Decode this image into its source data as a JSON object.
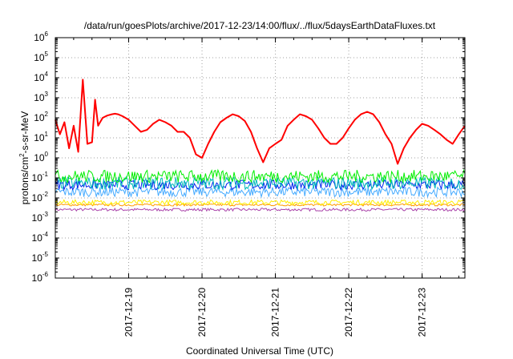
{
  "chart_data": {
    "type": "line",
    "title": "/data/run/goesPlots/archive/2017-12-23/14:00/flux/../flux/5daysEarthDataFluxes.txt",
    "xlabel": "Coordinated Universal Time (UTC)",
    "ylabel": {
      "base": "protons/cm",
      "sup": "2",
      "rest": "-s-sr-MeV"
    },
    "yscale": "log",
    "ylim": [
      1e-06,
      1000000.0
    ],
    "y_ticks": [
      {
        "value": 1e-06,
        "base": "10",
        "exp": "-6"
      },
      {
        "value": 1e-05,
        "base": "10",
        "exp": "-5"
      },
      {
        "value": 0.0001,
        "base": "10",
        "exp": "-4"
      },
      {
        "value": 0.001,
        "base": "10",
        "exp": "-3"
      },
      {
        "value": 0.01,
        "base": "10",
        "exp": "-2"
      },
      {
        "value": 0.1,
        "base": "10",
        "exp": "-1"
      },
      {
        "value": 1.0,
        "base": "10",
        "exp": "0"
      },
      {
        "value": 10.0,
        "base": "10",
        "exp": "1"
      },
      {
        "value": 100.0,
        "base": "10",
        "exp": "2"
      },
      {
        "value": 1000.0,
        "base": "10",
        "exp": "3"
      },
      {
        "value": 10000.0,
        "base": "10",
        "exp": "4"
      },
      {
        "value": 100000.0,
        "base": "10",
        "exp": "5"
      },
      {
        "value": 1000000.0,
        "base": "10",
        "exp": "6"
      }
    ],
    "xlim": [
      "2017-12-18 00:00",
      "2017-12-23 14:00"
    ],
    "x_ticks": [
      "2017-12-19",
      "2017-12-20",
      "2017-12-21",
      "2017-12-22",
      "2017-12-23"
    ],
    "grid": true,
    "legend": "none",
    "series": [
      {
        "color": "#ff0000",
        "x": [
          "2017-12-18 00:00",
          "2017-12-18 01:30",
          "2017-12-18 03:00",
          "2017-12-18 04:30",
          "2017-12-18 06:00",
          "2017-12-18 07:30",
          "2017-12-18 09:00",
          "2017-12-18 10:30",
          "2017-12-18 12:00",
          "2017-12-18 13:00",
          "2017-12-18 14:00",
          "2017-12-18 14:20",
          "2017-12-18 15:30",
          "2017-12-18 17:00",
          "2017-12-18 18:30",
          "2017-12-18 19:30",
          "2017-12-18 20:30",
          "2017-12-18 22:00",
          "2017-12-19 00:00",
          "2017-12-19 02:00",
          "2017-12-19 04:00",
          "2017-12-19 06:00",
          "2017-12-19 08:00",
          "2017-12-19 10:00",
          "2017-12-19 12:00",
          "2017-12-19 14:00",
          "2017-12-19 16:00",
          "2017-12-19 18:00",
          "2017-12-19 20:00",
          "2017-12-19 22:00",
          "2017-12-20 00:00",
          "2017-12-20 02:00",
          "2017-12-20 04:00",
          "2017-12-20 06:00",
          "2017-12-20 08:00",
          "2017-12-20 10:00",
          "2017-12-20 12:00",
          "2017-12-20 14:00",
          "2017-12-20 16:00",
          "2017-12-20 18:00",
          "2017-12-20 20:00",
          "2017-12-20 22:00",
          "2017-12-21 00:00",
          "2017-12-21 02:00",
          "2017-12-21 04:00",
          "2017-12-21 06:00",
          "2017-12-21 08:00",
          "2017-12-21 10:00",
          "2017-12-21 12:00",
          "2017-12-21 14:00",
          "2017-12-21 16:00",
          "2017-12-21 18:00",
          "2017-12-21 20:00",
          "2017-12-21 22:00",
          "2017-12-22 00:00",
          "2017-12-22 02:00",
          "2017-12-22 04:00",
          "2017-12-22 06:00",
          "2017-12-22 08:00",
          "2017-12-22 10:00",
          "2017-12-22 12:00",
          "2017-12-22 14:00",
          "2017-12-22 16:00",
          "2017-12-22 18:00",
          "2017-12-22 20:00",
          "2017-12-22 22:00",
          "2017-12-23 00:00",
          "2017-12-23 02:00",
          "2017-12-23 04:00",
          "2017-12-23 06:00",
          "2017-12-23 08:00",
          "2017-12-23 10:00",
          "2017-12-23 12:00",
          "2017-12-23 14:00"
        ],
        "y": [
          80,
          15,
          60,
          3,
          40,
          2,
          8000,
          5,
          6,
          800,
          40,
          50,
          100,
          130,
          150,
          160,
          150,
          120,
          80,
          40,
          20,
          25,
          50,
          80,
          60,
          40,
          20,
          20,
          10,
          1.5,
          1,
          5,
          20,
          60,
          100,
          150,
          120,
          70,
          20,
          3,
          0.6,
          3,
          5,
          8,
          40,
          80,
          150,
          120,
          80,
          30,
          10,
          5,
          5,
          10,
          30,
          80,
          150,
          200,
          150,
          60,
          15,
          5,
          0.5,
          3,
          10,
          25,
          50,
          40,
          25,
          15,
          8,
          5,
          15,
          40
        ]
      },
      {
        "color": "#00ee00",
        "level": 0.12,
        "spread": 0.45
      },
      {
        "color": "#00bbbb",
        "level": 0.055,
        "spread": 0.45
      },
      {
        "color": "#0022ee",
        "level": 0.045,
        "spread": 0.35
      },
      {
        "color": "#44aaff",
        "level": 0.02,
        "spread": 0.35
      },
      {
        "color": "#ffee00",
        "level": 0.006,
        "spread": 0.18
      },
      {
        "color": "#ff9900",
        "level": 0.0045,
        "spread": 0.08
      },
      {
        "color": "#aa44aa",
        "level": 0.0026,
        "spread": 0.1
      }
    ]
  }
}
